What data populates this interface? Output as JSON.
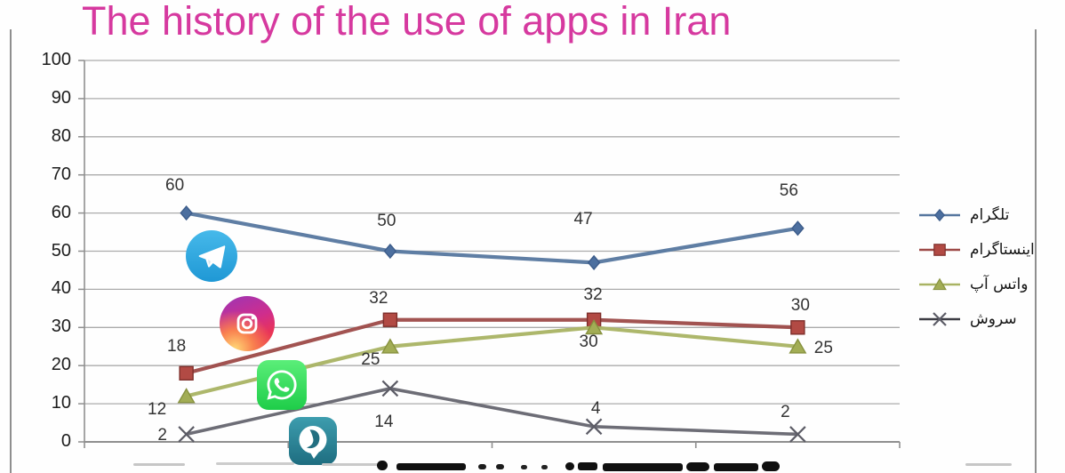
{
  "title": {
    "text": "The history of the use of apps in Iran",
    "color": "#d6399f"
  },
  "chart_data": {
    "type": "line",
    "title": "The history of the use of apps in Iran",
    "xlabel": "",
    "ylabel": "",
    "ylim": [
      0,
      100
    ],
    "y_ticks": [
      0,
      10,
      20,
      30,
      40,
      50,
      60,
      70,
      80,
      90,
      100
    ],
    "grid": true,
    "legend_position": "right",
    "x_count": 4,
    "categories": [
      "",
      "",
      "",
      ""
    ],
    "x_labels_clipped": true,
    "series": [
      {
        "key": "telegram",
        "name": "تلگرام",
        "values": [
          60,
          50,
          47,
          56
        ],
        "data_labels": [
          "60",
          "50",
          "47",
          "56"
        ],
        "line_color": "#56779f",
        "marker": "diamond",
        "marker_fill": "#4c6f9f",
        "marker_stroke": "#3d5d8b"
      },
      {
        "key": "instagram",
        "name": "اینستاگرام",
        "values": [
          18,
          32,
          32,
          30
        ],
        "data_labels": [
          "18",
          "32",
          "32",
          "30"
        ],
        "line_color": "#9d4a48",
        "marker": "square",
        "marker_fill": "#b24a44",
        "marker_stroke": "#7e2f2b"
      },
      {
        "key": "whatsapp",
        "name": "واتس آپ",
        "values": [
          12,
          25,
          30,
          25
        ],
        "data_labels": [
          "12",
          "25",
          "30",
          "25"
        ],
        "line_color": "#a9b363",
        "marker": "triangle",
        "marker_fill": "#a2ad55",
        "marker_stroke": "#87923f"
      },
      {
        "key": "soroush",
        "name": "سروش",
        "values": [
          2,
          14,
          4,
          2
        ],
        "data_labels": [
          "2",
          "14",
          "4",
          "2"
        ],
        "line_color": "#65656f",
        "marker": "x",
        "marker_fill": "none",
        "marker_stroke": "#5c5c66"
      }
    ]
  },
  "overlay_icons": [
    {
      "name": "telegram-logo"
    },
    {
      "name": "instagram-logo"
    },
    {
      "name": "whatsapp-logo"
    },
    {
      "name": "soroush-logo"
    }
  ]
}
